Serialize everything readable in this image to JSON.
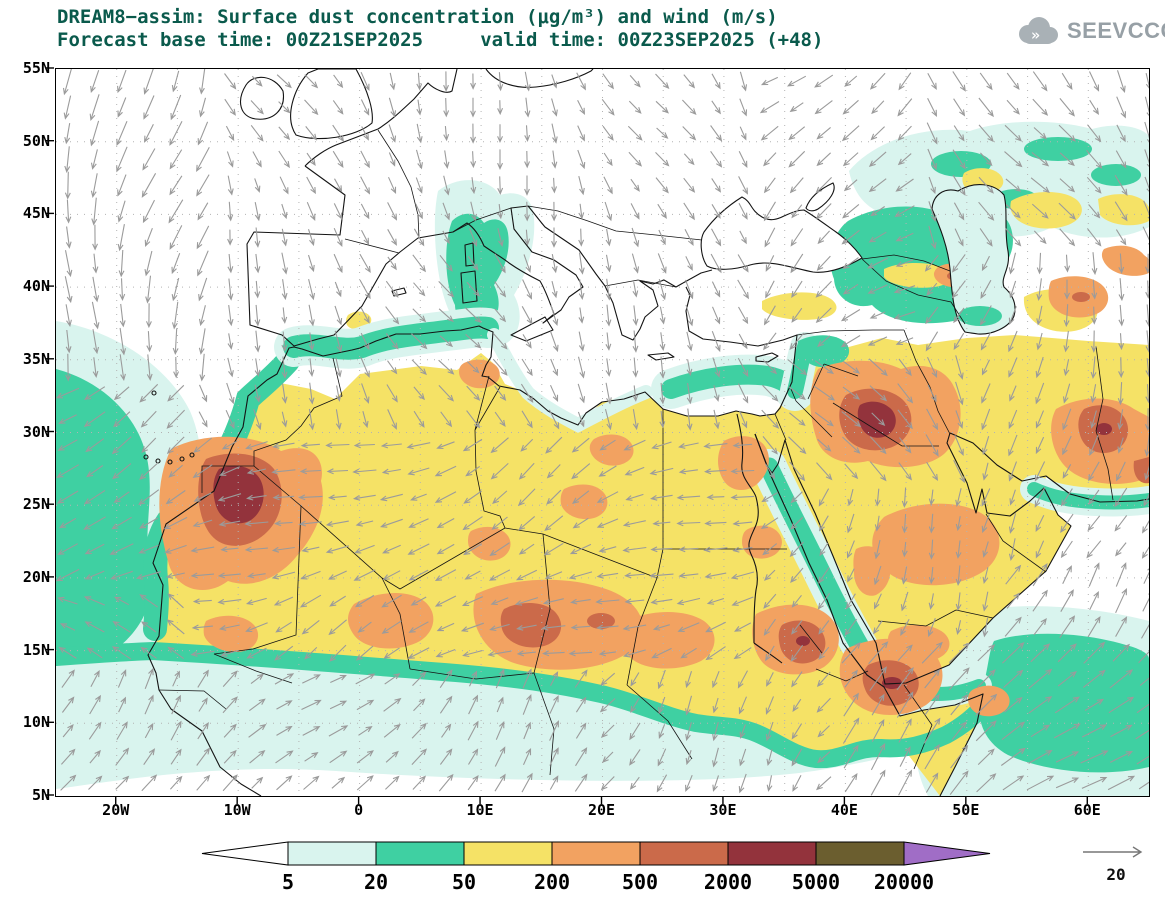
{
  "header": {
    "title": "DREAM8−assim: Surface dust concentration (μg/m³) and wind (m/s)",
    "subtitle": "Forecast base time: 00Z21SEP2025     valid time: 00Z23SEP2025 (+48)",
    "logo_text": "SEEVCCC"
  },
  "theme": {
    "title_color": "#0a5a4c",
    "logo_color": "#97a0a6",
    "coast_color": "#141414",
    "wind_arrow_color": "#9b9b9b",
    "grid_color": "#b3b3b3"
  },
  "map": {
    "lon_min": -25,
    "lon_max": 65,
    "lat_min": 5,
    "lat_max": 55,
    "lat_ticks": [
      {
        "label": "55N",
        "value": 55
      },
      {
        "label": "50N",
        "value": 50
      },
      {
        "label": "45N",
        "value": 45
      },
      {
        "label": "40N",
        "value": 40
      },
      {
        "label": "35N",
        "value": 35
      },
      {
        "label": "30N",
        "value": 30
      },
      {
        "label": "25N",
        "value": 25
      },
      {
        "label": "20N",
        "value": 20
      },
      {
        "label": "15N",
        "value": 15
      },
      {
        "label": "10N",
        "value": 10
      },
      {
        "label": "5N",
        "value": 5
      }
    ],
    "lon_ticks": [
      {
        "label": "20W",
        "value": -20
      },
      {
        "label": "10W",
        "value": -10
      },
      {
        "label": "0",
        "value": 0
      },
      {
        "label": "10E",
        "value": 10
      },
      {
        "label": "20E",
        "value": 20
      },
      {
        "label": "30E",
        "value": 30
      },
      {
        "label": "40E",
        "value": 40
      },
      {
        "label": "50E",
        "value": 50
      },
      {
        "label": "60E",
        "value": 60
      }
    ]
  },
  "legend": {
    "values": [
      "5",
      "20",
      "50",
      "200",
      "500",
      "2000",
      "5000",
      "20000"
    ],
    "colors": [
      "#ffffff",
      "#d9f4ee",
      "#3fd0a2",
      "#f5e266",
      "#f2a261",
      "#cb6a4a",
      "#93333c",
      "#6b5e2f",
      "#a06dc6"
    ]
  },
  "wind_reference": {
    "label": "20"
  },
  "chart_data": {
    "type": "heatmap",
    "model": "DREAM8-assim",
    "variable": "Surface dust concentration",
    "units": "μg/m³",
    "wind_units": "m/s",
    "wind_reference_ms": 20,
    "forecast_base_time": "00Z21SEP2025",
    "valid_time": "00Z23SEP2025",
    "lead_hours": 48,
    "lon_range": [
      -25,
      65
    ],
    "lat_range": [
      5,
      55
    ],
    "x_tick_labels": [
      "20W",
      "10W",
      "0",
      "10E",
      "20E",
      "30E",
      "40E",
      "50E",
      "60E"
    ],
    "y_tick_labels": [
      "5N",
      "10N",
      "15N",
      "20N",
      "25N",
      "30N",
      "35N",
      "40N",
      "45N",
      "50N",
      "55N"
    ],
    "contour_levels": [
      5,
      20,
      50,
      200,
      500,
      2000,
      5000,
      20000
    ],
    "level_colors": [
      "#ffffff",
      "#d9f4ee",
      "#3fd0a2",
      "#f5e266",
      "#f2a261",
      "#cb6a4a",
      "#93333c",
      "#6b5e2f",
      "#a06dc6"
    ],
    "grid": "5-degree dotted graticule",
    "legend_position": "bottom",
    "features": [
      {
        "region": "Western Sahara / NW Mauritania hotspot",
        "approx_lon": -11,
        "approx_lat": 25,
        "level": "2000-5000"
      },
      {
        "region": "Sahara-Arabia dust belt (background)",
        "approx_lon": 15,
        "approx_lat": 22,
        "level": "50-200"
      },
      {
        "region": "Central Sahara (Mali/Niger/Chad) plumes",
        "approx_lon": 14,
        "approx_lat": 18,
        "level": "500-2000"
      },
      {
        "region": "Mesopotamia (Iraq) plume",
        "approx_lon": 44,
        "approx_lat": 31.5,
        "level": "2000-5000"
      },
      {
        "region": "NE Sudan / Eritrea plume",
        "approx_lon": 37,
        "approx_lat": 15,
        "level": "500-2000"
      },
      {
        "region": "Djibouti / Horn of Africa hotspot",
        "approx_lon": 43,
        "approx_lat": 12,
        "level": "2000-5000"
      },
      {
        "region": "Sistan (SE Iran / Afghan border) hotspot",
        "approx_lon": 61,
        "approx_lat": 30.5,
        "level": "2000-5000"
      },
      {
        "region": "Central Arabian Peninsula",
        "approx_lon": 47,
        "approx_lat": 22,
        "level": "200-500"
      },
      {
        "region": "Egypt / Nile valley patches",
        "approx_lon": 31,
        "approx_lat": 27,
        "level": "200-500"
      },
      {
        "region": "Maghreb coastal band (Morocco-Tunisia)",
        "approx_lon": 3,
        "approx_lat": 36,
        "level": "20-50"
      },
      {
        "region": "Sahel southern fringe band",
        "approx_lon": 5,
        "approx_lat": 13,
        "level": "20-50"
      },
      {
        "region": "Subtropical NE Atlantic plume",
        "approx_lon": -20,
        "approx_lat": 22,
        "level": "20-50"
      },
      {
        "region": "E Mediterranean / Levant coast",
        "approx_lon": 30,
        "approx_lat": 34,
        "level": "5-50"
      },
      {
        "region": "Caucasus - Caspian region",
        "approx_lon": 45,
        "approx_lat": 41,
        "level": "20-200"
      },
      {
        "region": "Arabian Sea / Gulf of Aden",
        "approx_lon": 58,
        "approx_lat": 12,
        "level": "20-50"
      }
    ]
  }
}
